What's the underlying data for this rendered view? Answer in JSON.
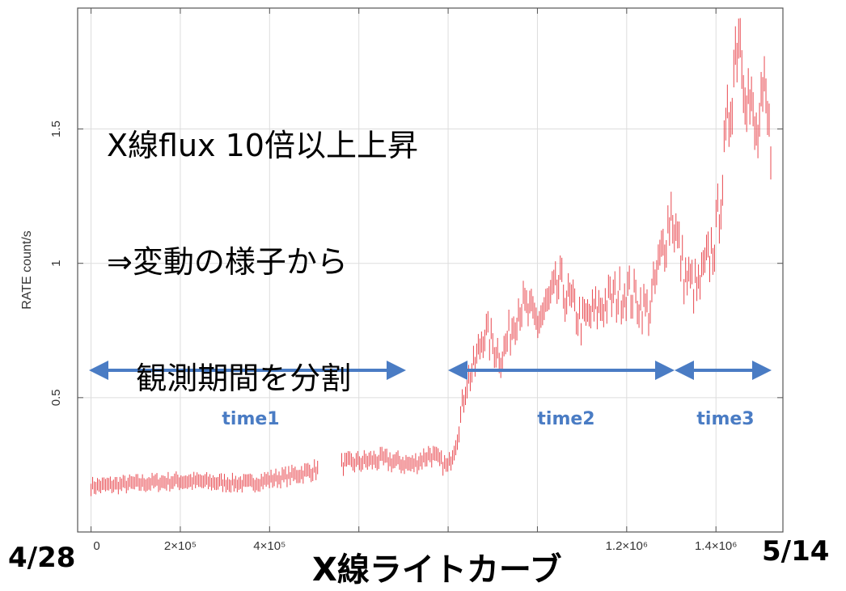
{
  "chart_data": {
    "type": "scatter",
    "ylabel": "RATE  count/s",
    "xlabel": "",
    "xlim": [
      -30000,
      1550000
    ],
    "ylim": [
      0,
      1.95
    ],
    "x_ticks": [
      0,
      200000,
      400000,
      1200000,
      1400000
    ],
    "x_tick_labels": [
      "0",
      "2×10⁵",
      "4×10⁵",
      "1.2×10⁶",
      "1.4×10⁶"
    ],
    "y_ticks": [
      0.5,
      1,
      1.5
    ],
    "y_tick_labels": [
      "0.5",
      "1",
      "1.5"
    ],
    "grid": true,
    "point_color": "#e8484f",
    "arrow_color": "#4a7cc4",
    "anchors": [
      [
        0,
        0.17
      ],
      [
        200000,
        0.19
      ],
      [
        350000,
        0.18
      ],
      [
        450000,
        0.21
      ],
      [
        550000,
        0.25
      ],
      [
        650000,
        0.27
      ],
      [
        720000,
        0.25
      ],
      [
        760000,
        0.29
      ],
      [
        800000,
        0.24
      ],
      [
        820000,
        0.35
      ],
      [
        840000,
        0.55
      ],
      [
        860000,
        0.62
      ],
      [
        880000,
        0.75
      ],
      [
        920000,
        0.65
      ],
      [
        960000,
        0.85
      ],
      [
        1000000,
        0.78
      ],
      [
        1050000,
        0.92
      ],
      [
        1100000,
        0.78
      ],
      [
        1150000,
        0.85
      ],
      [
        1200000,
        0.9
      ],
      [
        1250000,
        0.82
      ],
      [
        1280000,
        1.05
      ],
      [
        1300000,
        1.2
      ],
      [
        1330000,
        0.95
      ],
      [
        1360000,
        0.9
      ],
      [
        1400000,
        1.1
      ],
      [
        1420000,
        1.4
      ],
      [
        1450000,
        1.9
      ],
      [
        1470000,
        1.65
      ],
      [
        1490000,
        1.45
      ],
      [
        1510000,
        1.6
      ],
      [
        1520000,
        1.45
      ]
    ],
    "gaps": [
      [
        510000,
        560000
      ]
    ],
    "periods": [
      {
        "label": "time1",
        "start": 0,
        "end": 500000
      },
      {
        "label": "time2",
        "start": 560000,
        "end": 1300000
      },
      {
        "label": "time3",
        "start": 1300000,
        "end": 1530000
      }
    ]
  },
  "annotation": {
    "lines": [
      "X線flux 10倍以上上昇",
      "⇒変動の様子から",
      "   観測期間を分割"
    ]
  },
  "date_start": "4/28",
  "date_end": "5/14",
  "caption": "X線ライトカーブ"
}
